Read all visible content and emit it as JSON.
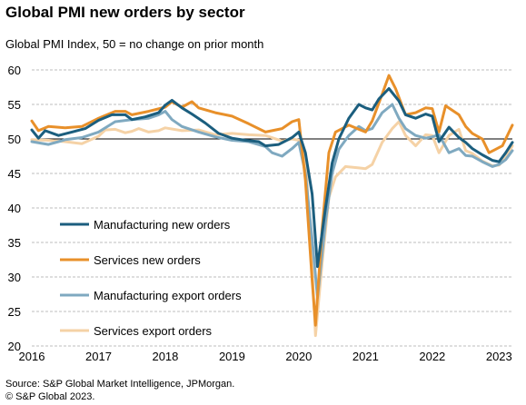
{
  "header": {
    "title": "Global PMI new orders by sector",
    "subtitle": "Global  PMI Index, 50 = no change on prior month"
  },
  "footer": {
    "source": "Source: S&P Global Market Intelligence, JPMorgan.",
    "copyright": "© S&P Global 2023."
  },
  "chart_data": {
    "type": "line",
    "title": "Global PMI new orders by sector",
    "ylabel": "Global  PMI Index, 50 = no change on prior month",
    "xlabel": "",
    "ylim": [
      20,
      60
    ],
    "yticks": [
      20,
      25,
      30,
      35,
      40,
      45,
      50,
      55,
      60
    ],
    "xlim": [
      2016.0,
      2023.2
    ],
    "xticks": [
      2016,
      2017,
      2018,
      2019,
      2020,
      2021,
      2022,
      2023
    ],
    "xtick_labels": [
      "2016",
      "2017",
      "2018",
      "2019",
      "2020",
      "2021",
      "2022",
      "2023"
    ],
    "grid": "horizontal dashed",
    "reference_line": 50,
    "legend": {
      "position": "lower-left",
      "entries": [
        "Manufacturing new orders",
        "Services new orders",
        "Manufacturing export orders",
        "Services export orders"
      ]
    },
    "series": [
      {
        "name": "Services export orders",
        "color": "#f5d2a6",
        "data": [
          [
            2016.0,
            49.9
          ],
          [
            2016.25,
            49.8
          ],
          [
            2016.5,
            49.6
          ],
          [
            2016.75,
            49.3
          ],
          [
            2017.0,
            50.4
          ],
          [
            2017.1,
            51.3
          ],
          [
            2017.25,
            51.4
          ],
          [
            2017.4,
            50.9
          ],
          [
            2017.5,
            51.1
          ],
          [
            2017.6,
            51.5
          ],
          [
            2017.75,
            51.0
          ],
          [
            2017.9,
            51.2
          ],
          [
            2018.0,
            51.6
          ],
          [
            2018.25,
            51.2
          ],
          [
            2018.5,
            51.3
          ],
          [
            2018.75,
            50.6
          ],
          [
            2019.0,
            50.8
          ],
          [
            2019.25,
            50.6
          ],
          [
            2019.5,
            50.5
          ],
          [
            2019.75,
            49.7
          ],
          [
            2019.9,
            50.0
          ],
          [
            2020.0,
            49.8
          ],
          [
            2020.1,
            47.5
          ],
          [
            2020.2,
            31.0
          ],
          [
            2020.25,
            21.5
          ],
          [
            2020.35,
            32.0
          ],
          [
            2020.45,
            41.5
          ],
          [
            2020.55,
            44.5
          ],
          [
            2020.7,
            46.0
          ],
          [
            2020.9,
            45.8
          ],
          [
            2021.0,
            45.7
          ],
          [
            2021.1,
            46.3
          ],
          [
            2021.25,
            49.5
          ],
          [
            2021.4,
            51.5
          ],
          [
            2021.5,
            52.5
          ],
          [
            2021.6,
            50.5
          ],
          [
            2021.75,
            49.0
          ],
          [
            2021.9,
            50.6
          ],
          [
            2022.0,
            50.5
          ],
          [
            2022.1,
            48.0
          ],
          [
            2022.25,
            50.5
          ],
          [
            2022.4,
            51.4
          ],
          [
            2022.5,
            48.3
          ],
          [
            2022.6,
            47.9
          ],
          [
            2022.75,
            46.8
          ],
          [
            2022.9,
            46.1
          ],
          [
            2023.0,
            46.2
          ],
          [
            2023.1,
            47.3
          ],
          [
            2023.2,
            49.0
          ]
        ]
      },
      {
        "name": "Manufacturing export orders",
        "color": "#7fa9c0",
        "data": [
          [
            2016.0,
            49.6
          ],
          [
            2016.25,
            49.2
          ],
          [
            2016.4,
            49.6
          ],
          [
            2016.5,
            49.9
          ],
          [
            2016.75,
            50.2
          ],
          [
            2017.0,
            51.0
          ],
          [
            2017.25,
            52.5
          ],
          [
            2017.5,
            52.8
          ],
          [
            2017.75,
            53.0
          ],
          [
            2017.9,
            53.5
          ],
          [
            2018.0,
            54.0
          ],
          [
            2018.1,
            52.8
          ],
          [
            2018.25,
            51.8
          ],
          [
            2018.5,
            51.0
          ],
          [
            2018.75,
            50.3
          ],
          [
            2019.0,
            49.8
          ],
          [
            2019.25,
            49.6
          ],
          [
            2019.5,
            48.9
          ],
          [
            2019.6,
            48.0
          ],
          [
            2019.75,
            47.5
          ],
          [
            2019.9,
            48.6
          ],
          [
            2020.0,
            49.5
          ],
          [
            2020.1,
            45.0
          ],
          [
            2020.2,
            35.5
          ],
          [
            2020.28,
            27.0
          ],
          [
            2020.4,
            38.0
          ],
          [
            2020.5,
            45.0
          ],
          [
            2020.6,
            48.5
          ],
          [
            2020.75,
            50.5
          ],
          [
            2020.9,
            51.8
          ],
          [
            2021.0,
            51.2
          ],
          [
            2021.1,
            51.5
          ],
          [
            2021.25,
            53.8
          ],
          [
            2021.4,
            55.0
          ],
          [
            2021.5,
            53.0
          ],
          [
            2021.6,
            51.5
          ],
          [
            2021.75,
            50.5
          ],
          [
            2021.9,
            50.1
          ],
          [
            2022.0,
            50.3
          ],
          [
            2022.1,
            50.6
          ],
          [
            2022.25,
            48.0
          ],
          [
            2022.4,
            48.6
          ],
          [
            2022.5,
            47.6
          ],
          [
            2022.6,
            47.5
          ],
          [
            2022.75,
            46.7
          ],
          [
            2022.9,
            46.0
          ],
          [
            2023.0,
            46.3
          ],
          [
            2023.1,
            47.0
          ],
          [
            2023.2,
            48.3
          ]
        ]
      },
      {
        "name": "Services new orders",
        "color": "#e8902a",
        "data": [
          [
            2016.0,
            52.6
          ],
          [
            2016.1,
            51.2
          ],
          [
            2016.25,
            51.8
          ],
          [
            2016.5,
            51.6
          ],
          [
            2016.75,
            51.8
          ],
          [
            2017.0,
            53.0
          ],
          [
            2017.25,
            54.0
          ],
          [
            2017.4,
            54.0
          ],
          [
            2017.5,
            53.5
          ],
          [
            2017.75,
            54.0
          ],
          [
            2018.0,
            54.6
          ],
          [
            2018.1,
            55.4
          ],
          [
            2018.25,
            54.6
          ],
          [
            2018.4,
            55.4
          ],
          [
            2018.5,
            54.5
          ],
          [
            2018.75,
            53.8
          ],
          [
            2019.0,
            53.3
          ],
          [
            2019.25,
            52.2
          ],
          [
            2019.5,
            51.0
          ],
          [
            2019.75,
            51.5
          ],
          [
            2019.9,
            52.5
          ],
          [
            2020.0,
            52.8
          ],
          [
            2020.1,
            44.0
          ],
          [
            2020.2,
            29.5
          ],
          [
            2020.25,
            23.0
          ],
          [
            2020.35,
            37.0
          ],
          [
            2020.45,
            48.0
          ],
          [
            2020.55,
            51.0
          ],
          [
            2020.75,
            52.0
          ],
          [
            2020.9,
            51.4
          ],
          [
            2021.0,
            51.0
          ],
          [
            2021.1,
            52.6
          ],
          [
            2021.25,
            56.5
          ],
          [
            2021.35,
            59.2
          ],
          [
            2021.45,
            57.3
          ],
          [
            2021.6,
            53.5
          ],
          [
            2021.75,
            53.8
          ],
          [
            2021.9,
            54.5
          ],
          [
            2022.0,
            54.4
          ],
          [
            2022.1,
            51.0
          ],
          [
            2022.2,
            54.8
          ],
          [
            2022.4,
            53.5
          ],
          [
            2022.5,
            51.8
          ],
          [
            2022.6,
            50.8
          ],
          [
            2022.75,
            50.0
          ],
          [
            2022.85,
            48.0
          ],
          [
            2022.95,
            48.5
          ],
          [
            2023.05,
            49.0
          ],
          [
            2023.2,
            52.0
          ]
        ]
      },
      {
        "name": "Manufacturing new orders",
        "color": "#1b5e7e",
        "data": [
          [
            2016.0,
            51.3
          ],
          [
            2016.1,
            50.1
          ],
          [
            2016.2,
            51.2
          ],
          [
            2016.4,
            50.5
          ],
          [
            2016.6,
            51.0
          ],
          [
            2016.8,
            51.5
          ],
          [
            2017.0,
            52.7
          ],
          [
            2017.2,
            53.5
          ],
          [
            2017.4,
            53.5
          ],
          [
            2017.5,
            52.8
          ],
          [
            2017.7,
            53.2
          ],
          [
            2017.9,
            53.8
          ],
          [
            2018.0,
            54.9
          ],
          [
            2018.1,
            55.6
          ],
          [
            2018.25,
            54.5
          ],
          [
            2018.4,
            53.6
          ],
          [
            2018.6,
            52.3
          ],
          [
            2018.8,
            50.8
          ],
          [
            2019.0,
            50.1
          ],
          [
            2019.2,
            49.8
          ],
          [
            2019.4,
            49.6
          ],
          [
            2019.5,
            49.0
          ],
          [
            2019.7,
            49.2
          ],
          [
            2019.9,
            50.2
          ],
          [
            2020.0,
            51.0
          ],
          [
            2020.1,
            48.0
          ],
          [
            2020.2,
            42.0
          ],
          [
            2020.28,
            31.5
          ],
          [
            2020.4,
            40.0
          ],
          [
            2020.5,
            46.5
          ],
          [
            2020.6,
            50.0
          ],
          [
            2020.75,
            53.0
          ],
          [
            2020.9,
            55.0
          ],
          [
            2021.0,
            54.5
          ],
          [
            2021.1,
            54.2
          ],
          [
            2021.2,
            55.8
          ],
          [
            2021.35,
            57.3
          ],
          [
            2021.5,
            55.5
          ],
          [
            2021.6,
            53.5
          ],
          [
            2021.75,
            53.0
          ],
          [
            2021.9,
            53.6
          ],
          [
            2022.0,
            53.3
          ],
          [
            2022.1,
            49.6
          ],
          [
            2022.25,
            51.7
          ],
          [
            2022.4,
            50.2
          ],
          [
            2022.5,
            49.5
          ],
          [
            2022.6,
            48.6
          ],
          [
            2022.75,
            47.7
          ],
          [
            2022.9,
            46.9
          ],
          [
            2023.0,
            46.7
          ],
          [
            2023.1,
            48.0
          ],
          [
            2023.2,
            49.5
          ]
        ]
      }
    ]
  }
}
